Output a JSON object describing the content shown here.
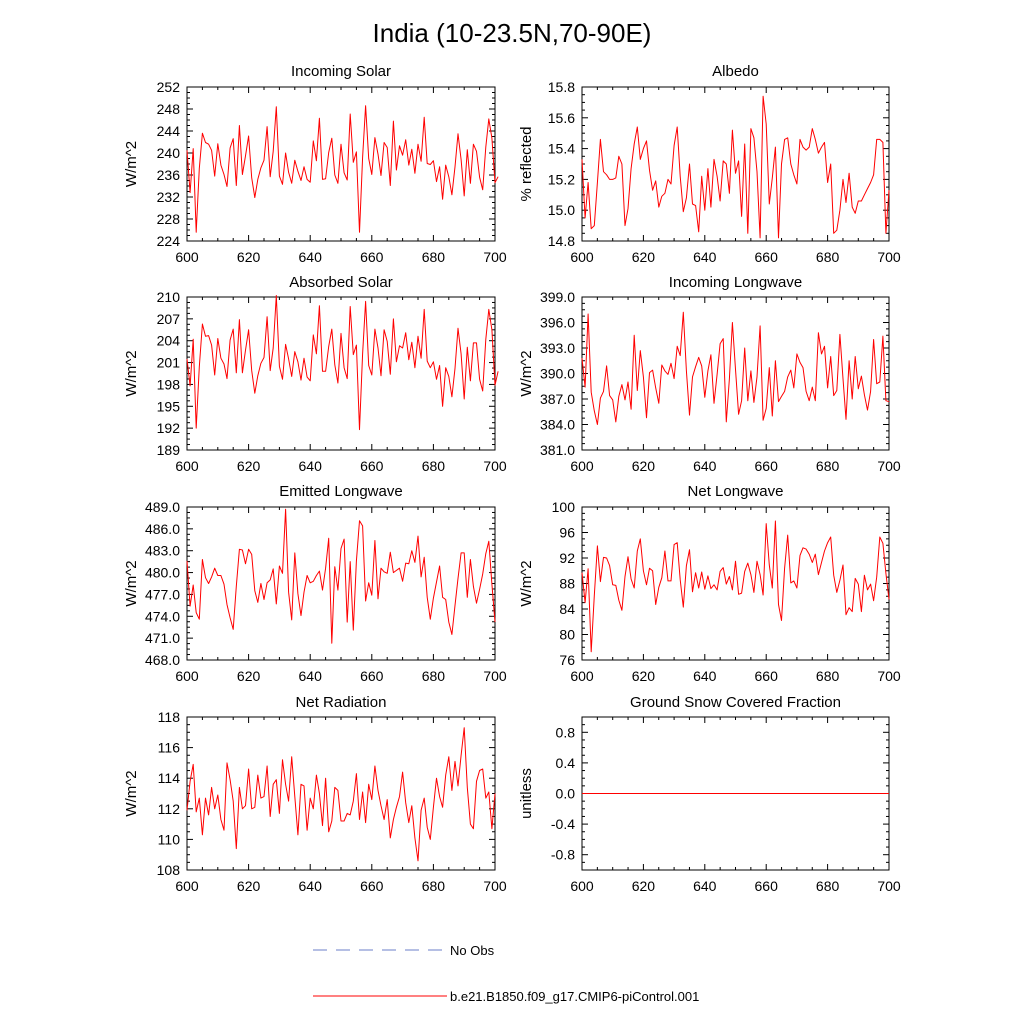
{
  "page_title": "India (10-23.5N,70-90E)",
  "legend": [
    {
      "label": "No Obs",
      "color": "#6b7fc9",
      "style": "dashed"
    },
    {
      "label": "b.e21.B1850.f09_g17.CMIP6-piControl.001",
      "color": "#ff0000",
      "style": "solid"
    }
  ],
  "chart_data": [
    {
      "type": "line",
      "title": "Incoming Solar",
      "ylabel": "W/m^2",
      "xlim": [
        600,
        700
      ],
      "ylim": [
        224,
        252
      ],
      "xticks": [
        600,
        620,
        640,
        660,
        680,
        700
      ],
      "yticks": [
        224,
        228,
        232,
        236,
        240,
        244,
        248,
        252
      ],
      "ytick_labels": [
        "224",
        "228",
        "232",
        "236",
        "240",
        "244",
        "248",
        "252"
      ],
      "series": [
        {
          "name": "b.e21.B1850.f09_g17.CMIP6-piControl.001",
          "x_start": 600,
          "values": [
            240.5,
            232.8,
            240.8,
            225.6,
            237.2,
            243.6,
            241.9,
            241.6,
            240.5,
            235.8,
            241.7,
            237.8,
            236.1,
            233.9,
            240.9,
            242.6,
            234.1,
            245.0,
            236.1,
            239.5,
            243.1,
            235.5,
            231.9,
            235.2,
            237.3,
            238.7,
            244.8,
            235.7,
            240.3,
            248.4,
            235.8,
            234.3,
            240.0,
            236.5,
            234.5,
            238.7,
            236.7,
            235.0,
            237.5,
            235.2,
            234.7,
            242.2,
            238.6,
            246.3,
            235.2,
            235.3,
            240.1,
            242.7,
            236.0,
            234.5,
            241.6,
            236.4,
            235.1,
            247.1,
            238.3,
            240.2,
            225.6,
            239.2,
            248.6,
            239.0,
            236.1,
            242.8,
            239.8,
            235.9,
            241.9,
            241.0,
            234.1,
            245.8,
            236.9,
            241.3,
            239.6,
            242.4,
            237.8,
            240.7,
            236.3,
            241.6,
            238.5,
            246.5,
            238.1,
            237.9,
            238.6,
            234.8,
            237.5,
            231.6,
            237.8,
            235.7,
            232.4,
            237.5,
            243.5,
            238.8,
            232.2,
            240.6,
            234.5,
            241.6,
            240.3,
            235.6,
            233.3,
            241.1,
            246.2,
            242.7,
            234.6,
            235.7
          ]
        }
      ]
    },
    {
      "type": "line",
      "title": "Albedo",
      "ylabel": "% reflected",
      "xlim": [
        600,
        700
      ],
      "ylim": [
        14.8,
        15.8
      ],
      "xticks": [
        600,
        620,
        640,
        660,
        680,
        700
      ],
      "yticks": [
        14.8,
        15.0,
        15.2,
        15.4,
        15.6,
        15.8
      ],
      "ytick_labels": [
        "14.8",
        "15.0",
        "15.2",
        "15.4",
        "15.6",
        "15.8"
      ],
      "series": [
        {
          "name": "b.e21.B1850.f09_g17.CMIP6-piControl.001",
          "x_start": 600,
          "values": [
            15.33,
            14.95,
            15.18,
            14.88,
            14.9,
            15.18,
            15.46,
            15.25,
            15.23,
            15.2,
            15.2,
            15.21,
            15.35,
            15.3,
            14.9,
            15.01,
            15.27,
            15.43,
            15.54,
            15.33,
            15.4,
            15.45,
            15.26,
            15.13,
            15.19,
            15.02,
            15.09,
            15.11,
            15.2,
            15.17,
            15.42,
            15.54,
            15.22,
            14.99,
            15.08,
            15.3,
            15.04,
            15.03,
            14.86,
            15.22,
            15.0,
            15.27,
            15.02,
            15.33,
            15.22,
            15.06,
            15.32,
            15.3,
            15.11,
            15.52,
            15.24,
            15.32,
            14.96,
            15.43,
            14.85,
            15.53,
            15.47,
            15.25,
            14.82,
            15.74,
            15.56,
            15.04,
            15.21,
            15.41,
            14.82,
            15.3,
            15.46,
            15.47,
            15.3,
            15.23,
            15.17,
            15.46,
            15.41,
            15.39,
            15.41,
            15.53,
            15.46,
            15.37,
            15.41,
            15.44,
            15.18,
            15.3,
            14.85,
            14.87,
            15.0,
            15.2,
            15.05,
            15.24,
            15.02,
            14.98,
            15.06,
            15.06,
            15.1,
            15.14,
            15.18,
            15.23,
            15.46,
            15.46,
            15.44,
            14.85,
            15.13
          ]
        }
      ]
    },
    {
      "type": "line",
      "title": "Absorbed Solar",
      "ylabel": "W/m^2",
      "xlim": [
        600,
        700
      ],
      "ylim": [
        189,
        210
      ],
      "xticks": [
        600,
        620,
        640,
        660,
        680,
        700
      ],
      "yticks": [
        189,
        192,
        195,
        198,
        201,
        204,
        207,
        210
      ],
      "ytick_labels": [
        "189",
        "192",
        "195",
        "198",
        "201",
        "204",
        "207",
        "210"
      ],
      "series": [
        {
          "name": "b.e21.B1850.f09_g17.CMIP6-piControl.001",
          "x_start": 600,
          "values": [
            201.5,
            197.8,
            204.2,
            192.0,
            200.4,
            206.3,
            204.6,
            204.7,
            203.4,
            199.3,
            204.3,
            201.6,
            200.8,
            198.8,
            204.1,
            205.6,
            199.6,
            206.9,
            199.6,
            202.7,
            205.5,
            199.9,
            196.8,
            199.2,
            200.9,
            201.7,
            207.3,
            199.9,
            203.0,
            210.2,
            200.5,
            198.7,
            203.5,
            201.5,
            199.1,
            202.5,
            201.1,
            198.6,
            201.6,
            199.0,
            198.5,
            204.8,
            202.2,
            208.8,
            199.8,
            199.8,
            203.2,
            205.6,
            200.7,
            198.2,
            205.0,
            200.3,
            198.8,
            208.7,
            202.1,
            203.4,
            191.8,
            202.2,
            209.4,
            200.6,
            199.3,
            205.6,
            203.0,
            199.2,
            205.5,
            203.9,
            199.4,
            207.0,
            201.1,
            203.3,
            203.0,
            205.1,
            201.4,
            203.8,
            200.3,
            204.6,
            201.6,
            208.3,
            201.2,
            200.3,
            201.1,
            198.7,
            200.6,
            195.0,
            200.3,
            199.1,
            196.3,
            200.2,
            205.7,
            202.2,
            196.0,
            203.1,
            198.5,
            203.7,
            203.7,
            198.7,
            197.1,
            204.2,
            208.3,
            205.5,
            197.9,
            199.8
          ]
        }
      ]
    },
    {
      "type": "line",
      "title": "Incoming Longwave",
      "ylabel": "W/m^2",
      "xlim": [
        600,
        700
      ],
      "ylim": [
        381,
        399
      ],
      "xticks": [
        600,
        620,
        640,
        660,
        680,
        700
      ],
      "yticks": [
        381,
        384,
        387,
        390,
        393,
        396,
        399
      ],
      "ytick_labels": [
        "381.0",
        "384.0",
        "387.0",
        "390.0",
        "393.0",
        "396.0",
        "399.0"
      ],
      "series": [
        {
          "name": "b.e21.B1850.f09_g17.CMIP6-piControl.001",
          "x_start": 600,
          "values": [
            391.8,
            388.4,
            397.0,
            387.8,
            385.6,
            384.0,
            387.1,
            387.9,
            390.9,
            387.4,
            386.9,
            384.3,
            387.3,
            388.7,
            386.9,
            389.0,
            385.8,
            394.5,
            388.0,
            392.7,
            389.6,
            384.8,
            390.1,
            390.4,
            388.3,
            386.5,
            391.0,
            390.3,
            389.9,
            391.2,
            389.4,
            393.2,
            392.1,
            397.2,
            390.3,
            385.1,
            389.6,
            390.8,
            391.9,
            390.9,
            387.2,
            390.3,
            392.2,
            386.5,
            389.9,
            393.5,
            394.1,
            384.3,
            389.4,
            396.0,
            390.5,
            385.2,
            386.8,
            393.0,
            386.8,
            390.3,
            386.6,
            389.6,
            395.6,
            384.5,
            385.9,
            390.7,
            385.0,
            391.5,
            386.7,
            387.3,
            387.9,
            389.6,
            390.4,
            388.3,
            392.3,
            391.3,
            390.7,
            387.9,
            386.8,
            388.4,
            386.8,
            394.8,
            392.3,
            393.2,
            388.3,
            392.0,
            387.4,
            388.0,
            394.6,
            389.4,
            384.6,
            391.5,
            387.0,
            392.0,
            388.2,
            389.7,
            387.5,
            385.7,
            387.9,
            394.0,
            388.8,
            389.0,
            394.4,
            386.8,
            386.7
          ]
        }
      ]
    },
    {
      "type": "line",
      "title": "Emitted Longwave",
      "ylabel": "W/m^2",
      "xlim": [
        600,
        700
      ],
      "ylim": [
        468,
        489
      ],
      "xticks": [
        600,
        620,
        640,
        660,
        680,
        700
      ],
      "yticks": [
        468,
        471,
        474,
        477,
        480,
        483,
        486,
        489
      ],
      "ytick_labels": [
        "468.0",
        "471.0",
        "474.0",
        "477.0",
        "480.0",
        "483.0",
        "486.0",
        "489.0"
      ],
      "series": [
        {
          "name": "b.e21.B1850.f09_g17.CMIP6-piControl.001",
          "x_start": 600,
          "values": [
            481.6,
            475.4,
            478.3,
            474.5,
            473.6,
            481.8,
            479.3,
            478.5,
            479.4,
            480.6,
            479.6,
            479.6,
            478.4,
            475.6,
            473.8,
            472.2,
            478.1,
            483.2,
            483.1,
            481.2,
            483.2,
            482.5,
            477.5,
            475.9,
            478.5,
            476.3,
            478.6,
            479.0,
            480.5,
            475.7,
            480.9,
            479.9,
            488.7,
            477.3,
            473.5,
            482.7,
            477.1,
            474.1,
            477.3,
            479.6,
            478.6,
            478.8,
            479.6,
            480.2,
            477.6,
            480.6,
            484.7,
            470.3,
            480.8,
            477.6,
            483.3,
            484.6,
            473.2,
            481.5,
            472.1,
            481.6,
            487.1,
            486.4,
            476.1,
            478.6,
            476.9,
            484.4,
            476.4,
            480.6,
            480.1,
            479.9,
            482.8,
            480.0,
            480.3,
            480.6,
            478.8,
            481.3,
            481.2,
            483.0,
            481.4,
            485.0,
            479.4,
            482.1,
            476.6,
            473.6,
            476.5,
            478.7,
            480.9,
            476.6,
            476.3,
            473.2,
            471.5,
            475.5,
            479.2,
            482.7,
            482.7,
            476.6,
            481.8,
            478.1,
            475.8,
            477.7,
            479.8,
            482.6,
            484.3,
            478.4,
            473.2
          ]
        }
      ]
    },
    {
      "type": "line",
      "title": "Net Longwave",
      "ylabel": "W/m^2",
      "xlim": [
        600,
        700
      ],
      "ylim": [
        76,
        100
      ],
      "xticks": [
        600,
        620,
        640,
        660,
        680,
        700
      ],
      "yticks": [
        76,
        80,
        84,
        88,
        92,
        96,
        100
      ],
      "ytick_labels": [
        "76",
        "80",
        "84",
        "88",
        "92",
        "96",
        "100"
      ],
      "series": [
        {
          "name": "b.e21.B1850.f09_g17.CMIP6-piControl.001",
          "x_start": 600,
          "values": [
            89.7,
            85.0,
            90.3,
            77.3,
            86.1,
            93.9,
            88.3,
            92.1,
            92.0,
            90.8,
            87.8,
            87.7,
            85.4,
            83.8,
            89.1,
            92.2,
            88.7,
            87.3,
            93.1,
            95.0,
            90.0,
            87.8,
            90.4,
            90.0,
            84.7,
            87.4,
            88.9,
            93.1,
            88.4,
            88.4,
            94.1,
            94.4,
            88.6,
            84.3,
            90.8,
            93.3,
            86.7,
            89.7,
            87.3,
            89.8,
            87.1,
            89.2,
            87.2,
            87.8,
            87.0,
            89.9,
            90.5,
            87.9,
            89.1,
            87.0,
            91.5,
            86.3,
            86.5,
            89.9,
            91.2,
            89.4,
            86.6,
            91.5,
            89.4,
            86.2,
            97.4,
            90.9,
            87.3,
            97.8,
            84.7,
            82.2,
            90.4,
            95.6,
            88.1,
            88.4,
            87.3,
            92.4,
            93.6,
            93.4,
            92.6,
            91.3,
            92.6,
            89.4,
            91.3,
            93.1,
            94.4,
            95.3,
            89.3,
            86.6,
            88.5,
            90.9,
            83.1,
            84.2,
            83.6,
            88.8,
            87.9,
            83.6,
            89.3,
            87.0,
            87.9,
            85.3,
            89.0,
            95.3,
            94.3,
            89.6,
            85.5
          ]
        }
      ]
    },
    {
      "type": "line",
      "title": "Net Radiation",
      "ylabel": "W/m^2",
      "xlim": [
        600,
        700
      ],
      "ylim": [
        108,
        118
      ],
      "xticks": [
        600,
        620,
        640,
        660,
        680,
        700
      ],
      "yticks": [
        108,
        110,
        112,
        114,
        116,
        118
      ],
      "ytick_labels": [
        "108",
        "110",
        "112",
        "114",
        "116",
        "118"
      ],
      "series": [
        {
          "name": "b.e21.B1850.f09_g17.CMIP6-piControl.001",
          "x_start": 600,
          "values": [
            111.9,
            113.8,
            114.9,
            111.8,
            112.7,
            110.3,
            112.7,
            111.6,
            113.4,
            112.0,
            112.9,
            111.3,
            110.6,
            115.0,
            113.9,
            112.5,
            109.4,
            113.4,
            112.0,
            112.2,
            114.6,
            112.0,
            112.1,
            114.2,
            112.7,
            112.8,
            114.8,
            111.5,
            113.6,
            113.9,
            111.7,
            115.2,
            113.6,
            112.5,
            115.4,
            112.8,
            110.3,
            113.6,
            113.5,
            110.6,
            112.7,
            112.0,
            114.2,
            113.0,
            110.9,
            114.0,
            110.5,
            111.2,
            113.4,
            113.2,
            111.2,
            111.2,
            111.7,
            111.6,
            112.5,
            114.3,
            111.3,
            113.1,
            111.1,
            113.6,
            112.6,
            114.8,
            113.2,
            112.2,
            111.3,
            112.6,
            110.1,
            111.3,
            112.1,
            112.8,
            114.4,
            112.4,
            111.1,
            112.2,
            110.1,
            108.6,
            111.9,
            112.7,
            110.8,
            110.0,
            112.1,
            114.0,
            112.8,
            112.1,
            114.2,
            115.4,
            113.2,
            115.1,
            113.5,
            115.5,
            117.3,
            113.4,
            111.0,
            110.7,
            113.8,
            114.5,
            114.6,
            112.7,
            113.1,
            110.7,
            113.0
          ]
        }
      ]
    },
    {
      "type": "line",
      "title": "Ground Snow Covered Fraction",
      "ylabel": "unitless",
      "xlim": [
        600,
        700
      ],
      "ylim": [
        -1.0,
        1.0
      ],
      "xticks": [
        600,
        620,
        640,
        660,
        680,
        700
      ],
      "yticks": [
        -0.8,
        -0.4,
        0.0,
        0.4,
        0.8
      ],
      "ytick_labels": [
        "-0.8",
        "-0.4",
        "0.0",
        "0.4",
        "0.8"
      ],
      "series": [
        {
          "name": "b.e21.B1850.f09_g17.CMIP6-piControl.001",
          "x_start": 600,
          "constant": 0.0,
          "count": 101
        }
      ]
    }
  ]
}
